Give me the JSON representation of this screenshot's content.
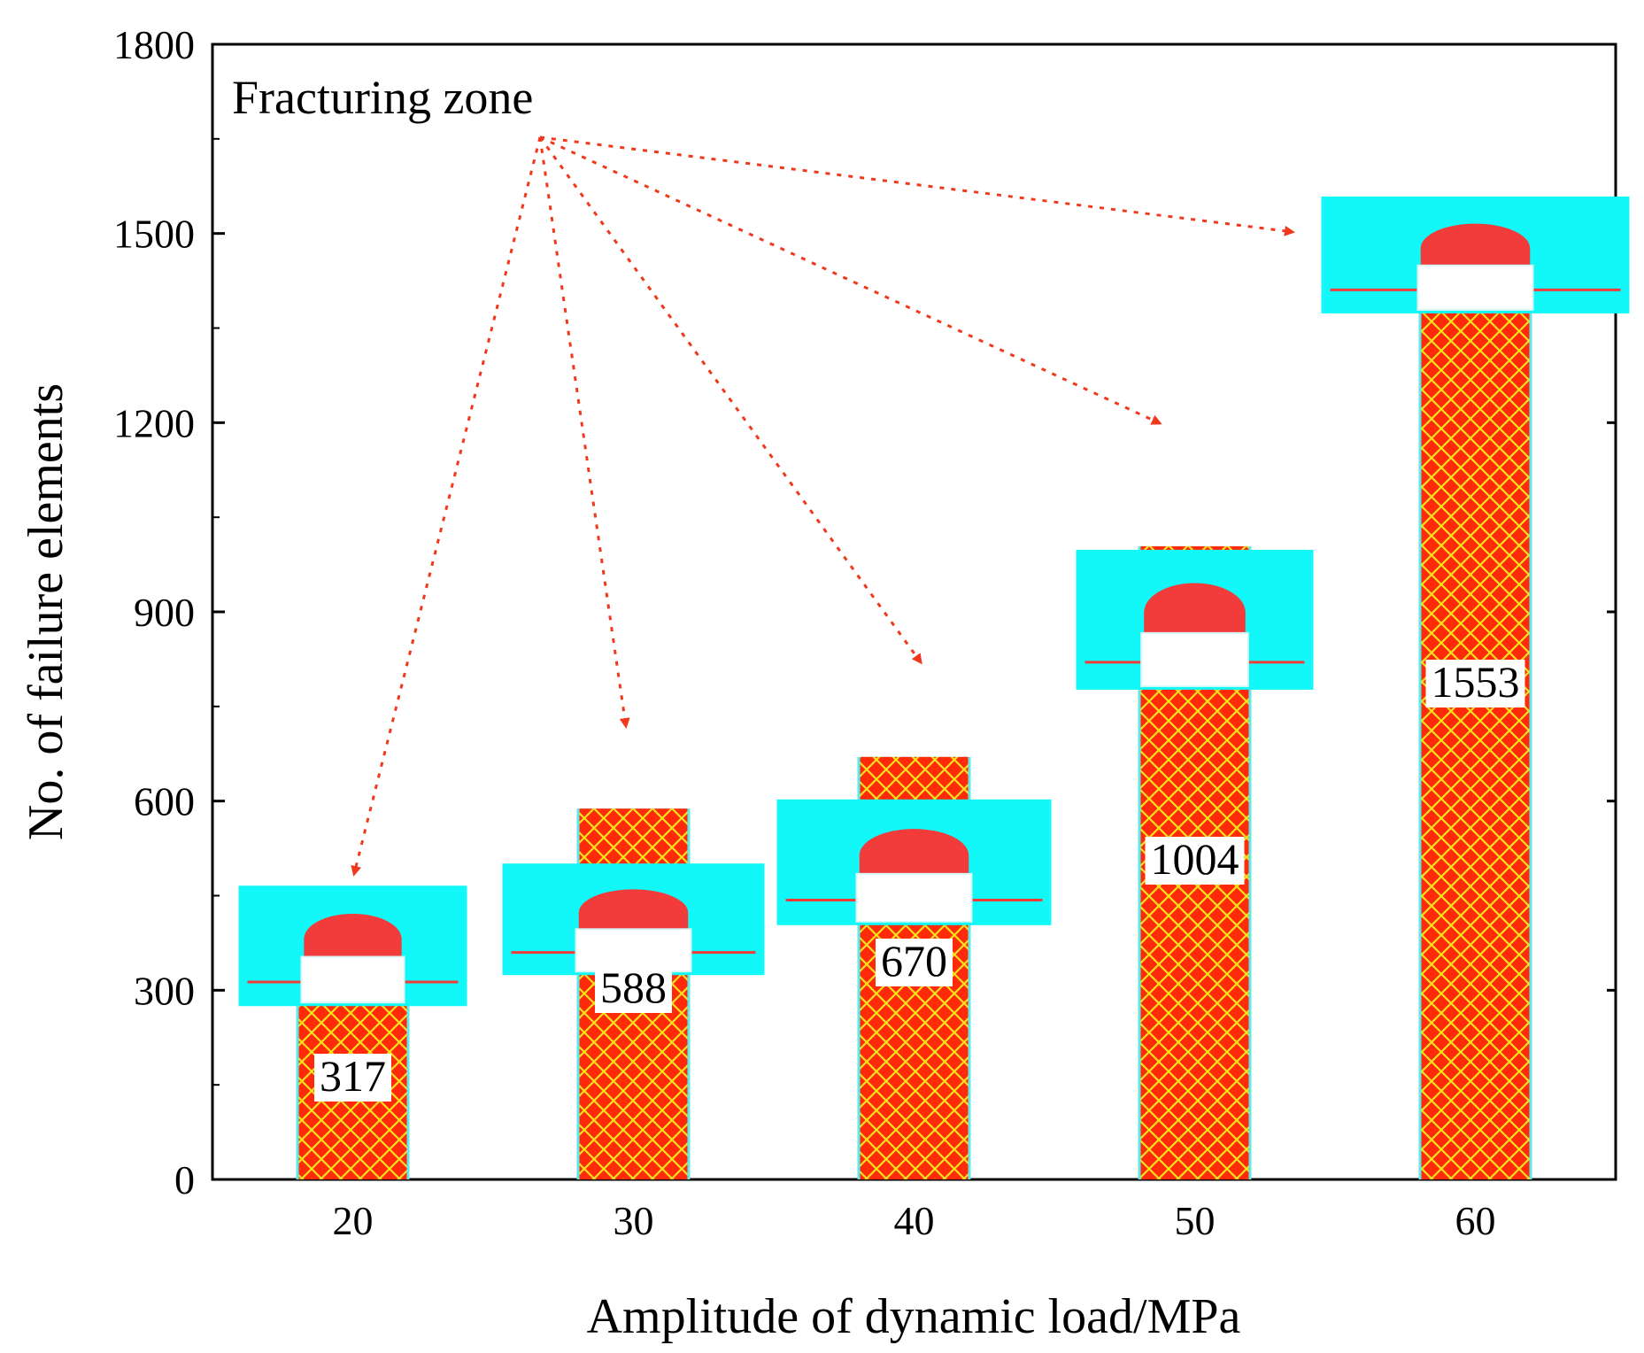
{
  "chart_data": {
    "type": "bar",
    "title": "",
    "xlabel": "Amplitude of dynamic load/MPa",
    "ylabel": "No. of failure elements",
    "categories": [
      "20",
      "30",
      "40",
      "50",
      "60"
    ],
    "values": [
      317,
      588,
      670,
      1004,
      1553
    ],
    "data_labels": [
      "317",
      "588",
      "670",
      "1004",
      "1553"
    ],
    "ylim": [
      0,
      1800
    ],
    "yticks": [
      0,
      300,
      600,
      900,
      1200,
      1500,
      1800
    ],
    "ytick_labels": [
      "0",
      "300",
      "600",
      "900",
      "1200",
      "1500",
      "1800"
    ],
    "grid": false,
    "annotation": "Fracturing zone",
    "inset_description": "fracturing zone model image above each bar"
  },
  "colors": {
    "bar_fill": "#ff2a0a",
    "bar_hatch": "#f6e21a",
    "inset_bg": "#12f7f7",
    "inset_damage": "#f23b3b",
    "arrow": "#f2381c"
  }
}
